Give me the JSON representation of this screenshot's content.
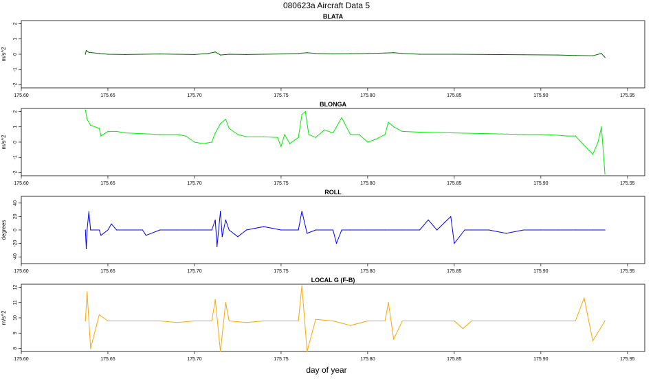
{
  "figure": {
    "title": "080623a   Aircraft Data 5",
    "xlabel": "day of year"
  },
  "chart_data": [
    {
      "type": "line",
      "title": "BLATA",
      "xlabel": "",
      "ylabel": "m/s^2",
      "xlim": [
        175.6,
        175.96
      ],
      "ylim": [
        -2.2,
        2.2
      ],
      "xticks": [
        "175.60",
        "175.65",
        "175.70",
        "175.75",
        "175.80",
        "175.85",
        "175.90",
        "175.95"
      ],
      "yticks": [
        "-2",
        "-1",
        "0",
        "1",
        "2"
      ],
      "color": "#006400",
      "grid": false,
      "series": [
        {
          "x": [
            175.637,
            175.6375,
            175.639,
            175.645,
            175.65,
            175.66,
            175.67,
            175.68,
            175.69,
            175.7,
            175.708,
            175.712,
            175.715,
            175.72,
            175.73,
            175.74,
            175.75,
            175.76,
            175.765,
            175.77,
            175.78,
            175.79,
            175.8,
            175.81,
            175.815,
            175.82,
            175.83,
            175.85,
            175.87,
            175.89,
            175.91,
            175.92,
            175.93,
            175.935,
            175.937
          ],
          "y": [
            0.0,
            0.25,
            0.12,
            0.05,
            0.0,
            -0.02,
            0.0,
            0.02,
            0.0,
            -0.02,
            0.05,
            0.15,
            -0.05,
            0.0,
            -0.02,
            0.0,
            0.02,
            0.05,
            0.1,
            0.05,
            0.02,
            0.03,
            0.05,
            0.08,
            0.1,
            0.05,
            0.0,
            0.0,
            -0.02,
            -0.03,
            -0.05,
            -0.08,
            -0.1,
            0.05,
            -0.2
          ]
        }
      ]
    },
    {
      "type": "line",
      "title": "BLONGA",
      "xlabel": "",
      "ylabel": "m/s^2",
      "xlim": [
        175.6,
        175.96
      ],
      "ylim": [
        -2.2,
        2.2
      ],
      "xticks": [
        "175.60",
        "175.65",
        "175.70",
        "175.75",
        "175.80",
        "175.85",
        "175.90",
        "175.95"
      ],
      "yticks": [
        "-2",
        "-1",
        "0",
        "1",
        "2"
      ],
      "color": "#00ee00",
      "grid": false,
      "series": [
        {
          "x": [
            175.637,
            175.638,
            175.64,
            175.645,
            175.646,
            175.65,
            175.655,
            175.66,
            175.67,
            175.68,
            175.69,
            175.695,
            175.7,
            175.705,
            175.71,
            175.712,
            175.715,
            175.718,
            175.72,
            175.725,
            175.73,
            175.74,
            175.748,
            175.75,
            175.752,
            175.755,
            175.76,
            175.762,
            175.764,
            175.766,
            175.77,
            175.775,
            175.78,
            175.785,
            175.79,
            175.795,
            175.8,
            175.805,
            175.81,
            175.812,
            175.815,
            175.82,
            175.83,
            175.85,
            175.87,
            175.89,
            175.9,
            175.91,
            175.915,
            175.92,
            175.925,
            175.93,
            175.933,
            175.935,
            175.937
          ],
          "y": [
            2.1,
            1.5,
            1.1,
            0.9,
            0.4,
            0.7,
            0.7,
            0.6,
            0.55,
            0.5,
            0.5,
            0.4,
            0.0,
            -0.1,
            0.0,
            0.6,
            1.2,
            1.5,
            0.9,
            0.5,
            0.35,
            0.35,
            0.3,
            -0.3,
            0.5,
            -0.1,
            0.3,
            1.8,
            2.0,
            0.5,
            0.3,
            0.8,
            0.6,
            1.6,
            0.5,
            0.5,
            0.0,
            0.2,
            0.5,
            1.3,
            1.0,
            0.7,
            0.65,
            0.6,
            0.55,
            0.5,
            0.5,
            0.45,
            0.4,
            0.4,
            -0.2,
            -0.8,
            0.0,
            1.0,
            -2.1
          ]
        }
      ]
    },
    {
      "type": "line",
      "title": "ROLL",
      "xlabel": "",
      "ylabel": "degrees",
      "xlim": [
        175.6,
        175.96
      ],
      "ylim": [
        -50,
        50
      ],
      "xticks": [
        "175.60",
        "175.65",
        "175.70",
        "175.75",
        "175.80",
        "175.85",
        "175.90",
        "175.95"
      ],
      "yticks": [
        "-40",
        "-20",
        "0",
        "20",
        "40"
      ],
      "color": "#0000ee",
      "grid": false,
      "series": [
        {
          "x": [
            175.637,
            175.6375,
            175.638,
            175.639,
            175.64,
            175.645,
            175.646,
            175.65,
            175.652,
            175.655,
            175.66,
            175.67,
            175.672,
            175.68,
            175.69,
            175.7,
            175.71,
            175.712,
            175.713,
            175.715,
            175.716,
            175.718,
            175.72,
            175.725,
            175.73,
            175.74,
            175.75,
            175.76,
            175.762,
            175.765,
            175.77,
            175.78,
            175.782,
            175.785,
            175.79,
            175.8,
            175.81,
            175.82,
            175.83,
            175.835,
            175.84,
            175.848,
            175.85,
            175.856,
            175.86,
            175.87,
            175.88,
            175.89,
            175.9,
            175.91,
            175.92,
            175.93,
            175.937
          ],
          "y": [
            0,
            -28,
            0,
            27,
            0,
            0,
            -8,
            0,
            9,
            0,
            0,
            0,
            -8,
            0,
            0,
            0,
            0,
            15,
            -25,
            28,
            -10,
            15,
            0,
            -10,
            0,
            5,
            0,
            0,
            28,
            -5,
            0,
            0,
            -20,
            0,
            0,
            0,
            0,
            0,
            0,
            15,
            0,
            20,
            -20,
            0,
            0,
            0,
            -5,
            0,
            0,
            0,
            0,
            0,
            0
          ]
        }
      ]
    },
    {
      "type": "line",
      "title": "LOCAL G (F-B)",
      "xlabel": "",
      "ylabel": "m/s^2",
      "xlim": [
        175.6,
        175.96
      ],
      "ylim": [
        7.8,
        12.2
      ],
      "xticks": [
        "175.60",
        "175.65",
        "175.70",
        "175.75",
        "175.80",
        "175.85",
        "175.90",
        "175.95"
      ],
      "yticks": [
        "8",
        "9",
        "10",
        "11",
        "12"
      ],
      "color": "#ffa500",
      "grid": false,
      "series": [
        {
          "x": [
            175.637,
            175.638,
            175.64,
            175.645,
            175.65,
            175.66,
            175.67,
            175.68,
            175.69,
            175.7,
            175.71,
            175.712,
            175.715,
            175.718,
            175.72,
            175.73,
            175.74,
            175.75,
            175.76,
            175.762,
            175.765,
            175.77,
            175.78,
            175.79,
            175.8,
            175.81,
            175.812,
            175.815,
            175.82,
            175.83,
            175.84,
            175.85,
            175.855,
            175.86,
            175.87,
            175.88,
            175.89,
            175.9,
            175.91,
            175.92,
            175.925,
            175.93,
            175.937
          ],
          "y": [
            9.8,
            11.7,
            8.0,
            10.2,
            9.8,
            9.8,
            9.8,
            9.8,
            9.7,
            9.8,
            9.8,
            11.2,
            7.8,
            11.0,
            9.8,
            9.7,
            9.8,
            9.8,
            9.8,
            12.1,
            7.8,
            9.9,
            9.8,
            9.5,
            9.8,
            9.8,
            11.0,
            8.6,
            9.8,
            9.8,
            9.8,
            9.8,
            9.3,
            9.8,
            9.8,
            9.8,
            9.8,
            9.8,
            9.8,
            9.8,
            11.3,
            8.5,
            9.8
          ]
        }
      ]
    }
  ]
}
